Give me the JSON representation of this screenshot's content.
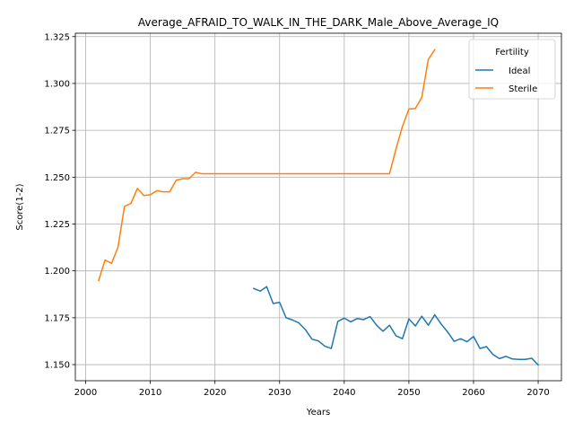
{
  "chart_data": {
    "type": "line",
    "title": "Average_AFRAID_TO_WALK_IN_THE_DARK_Male_Above_Average_IQ",
    "xlabel": "Years",
    "ylabel": "Score(1-2)",
    "xlim": [
      1998.4,
      2073.6
    ],
    "ylim": [
      1.1414,
      1.3268
    ],
    "xticks": [
      2000,
      2010,
      2020,
      2030,
      2040,
      2050,
      2060,
      2070
    ],
    "yticks": [
      1.15,
      1.175,
      1.2,
      1.225,
      1.25,
      1.275,
      1.3,
      1.325
    ],
    "ytick_labels": [
      "1.150",
      "1.175",
      "1.200",
      "1.225",
      "1.250",
      "1.275",
      "1.300",
      "1.325"
    ],
    "grid": true,
    "legend": {
      "title": "Fertility",
      "placement": "top-right"
    },
    "series": [
      {
        "name": "Ideal",
        "color": "#1f77b4",
        "x": [
          2026,
          2027,
          2028,
          2029,
          2030,
          2031,
          2032,
          2033,
          2034,
          2035,
          2036,
          2037,
          2038,
          2039,
          2040,
          2041,
          2042,
          2043,
          2044,
          2045,
          2046,
          2047,
          2048,
          2049,
          2050,
          2051,
          2052,
          2053,
          2054,
          2055,
          2056,
          2057,
          2058,
          2059,
          2060,
          2061,
          2062,
          2063,
          2064,
          2065,
          2066,
          2067,
          2068,
          2069,
          2070
        ],
        "y": [
          1.1906,
          1.1892,
          1.1916,
          1.1826,
          1.1832,
          1.175,
          1.1738,
          1.1722,
          1.1686,
          1.1636,
          1.1626,
          1.1598,
          1.1586,
          1.173,
          1.1748,
          1.1728,
          1.1746,
          1.174,
          1.1756,
          1.171,
          1.1678,
          1.171,
          1.1654,
          1.1638,
          1.1744,
          1.1706,
          1.1758,
          1.171,
          1.1766,
          1.1716,
          1.1674,
          1.1624,
          1.1638,
          1.1622,
          1.165,
          1.1586,
          1.1596,
          1.1554,
          1.1532,
          1.1544,
          1.153,
          1.1528,
          1.1528,
          1.1534,
          1.1498
        ]
      },
      {
        "name": "Sterile",
        "color": "#ff7f0e",
        "x": [
          2002,
          2003,
          2004,
          2005,
          2006,
          2007,
          2008,
          2009,
          2010,
          2011,
          2012,
          2013,
          2014,
          2015,
          2016,
          2017,
          2018,
          2019,
          2020,
          2021,
          2022,
          2023,
          2024,
          2025,
          2026,
          2027,
          2028,
          2029,
          2030,
          2031,
          2032,
          2033,
          2034,
          2035,
          2036,
          2037,
          2038,
          2039,
          2040,
          2041,
          2042,
          2043,
          2044,
          2045,
          2046,
          2047,
          2048,
          2049,
          2050,
          2051,
          2052,
          2053,
          2054
        ],
        "y": [
          1.1948,
          1.2058,
          1.204,
          1.2126,
          1.2344,
          1.236,
          1.244,
          1.2402,
          1.2406,
          1.2428,
          1.2422,
          1.2422,
          1.2484,
          1.2492,
          1.2492,
          1.2526,
          1.2518,
          1.2518,
          1.2518,
          1.2518,
          1.2518,
          1.2518,
          1.2518,
          1.2518,
          1.2518,
          1.2518,
          1.2518,
          1.2518,
          1.2518,
          1.2518,
          1.2518,
          1.2518,
          1.2518,
          1.2518,
          1.2518,
          1.2518,
          1.2518,
          1.2518,
          1.2518,
          1.2518,
          1.2518,
          1.2518,
          1.2518,
          1.2518,
          1.2518,
          1.2518,
          1.265,
          1.277,
          1.2864,
          1.2866,
          1.2926,
          1.3128,
          1.318
        ]
      }
    ]
  }
}
